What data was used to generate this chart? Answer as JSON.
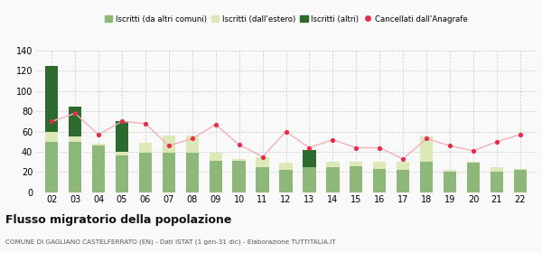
{
  "years": [
    "02",
    "03",
    "04",
    "05",
    "06",
    "07",
    "08",
    "09",
    "10",
    "11",
    "12",
    "13",
    "14",
    "15",
    "16",
    "17",
    "18",
    "19",
    "20",
    "21",
    "22"
  ],
  "iscritti_altri_comuni": [
    50,
    50,
    46,
    36,
    39,
    39,
    39,
    31,
    31,
    25,
    22,
    25,
    25,
    26,
    23,
    22,
    30,
    20,
    29,
    20,
    22
  ],
  "iscritti_estero": [
    10,
    5,
    2,
    4,
    10,
    17,
    17,
    8,
    2,
    10,
    7,
    0,
    5,
    4,
    7,
    8,
    25,
    2,
    1,
    5,
    1
  ],
  "iscritti_altri": [
    65,
    30,
    0,
    30,
    0,
    0,
    0,
    0,
    0,
    0,
    0,
    17,
    0,
    0,
    0,
    0,
    0,
    0,
    0,
    0,
    0
  ],
  "cancellati": [
    70,
    78,
    57,
    70,
    68,
    46,
    53,
    67,
    47,
    35,
    60,
    44,
    52,
    44,
    44,
    33,
    53,
    46,
    41,
    50,
    57
  ],
  "color_comuni": "#8db87a",
  "color_estero": "#dce8b8",
  "color_altri": "#2d6a2d",
  "color_cancellati": "#e8294a",
  "color_cancellati_line": "#f4b0b8",
  "ylim": [
    0,
    140
  ],
  "yticks": [
    0,
    20,
    40,
    60,
    80,
    100,
    120,
    140
  ],
  "title": "Flusso migratorio della popolazione",
  "subtitle": "COMUNE DI GAGLIANO CASTELFERRATO (EN) - Dati ISTAT (1 gen-31 dic) - Elaborazione TUTTITALIA.IT",
  "legend_labels": [
    "Iscritti (da altri comuni)",
    "Iscritti (dall'estero)",
    "Iscritti (altri)",
    "Cancellati dall'Anagrafe"
  ],
  "bg_color": "#f9f9f9"
}
